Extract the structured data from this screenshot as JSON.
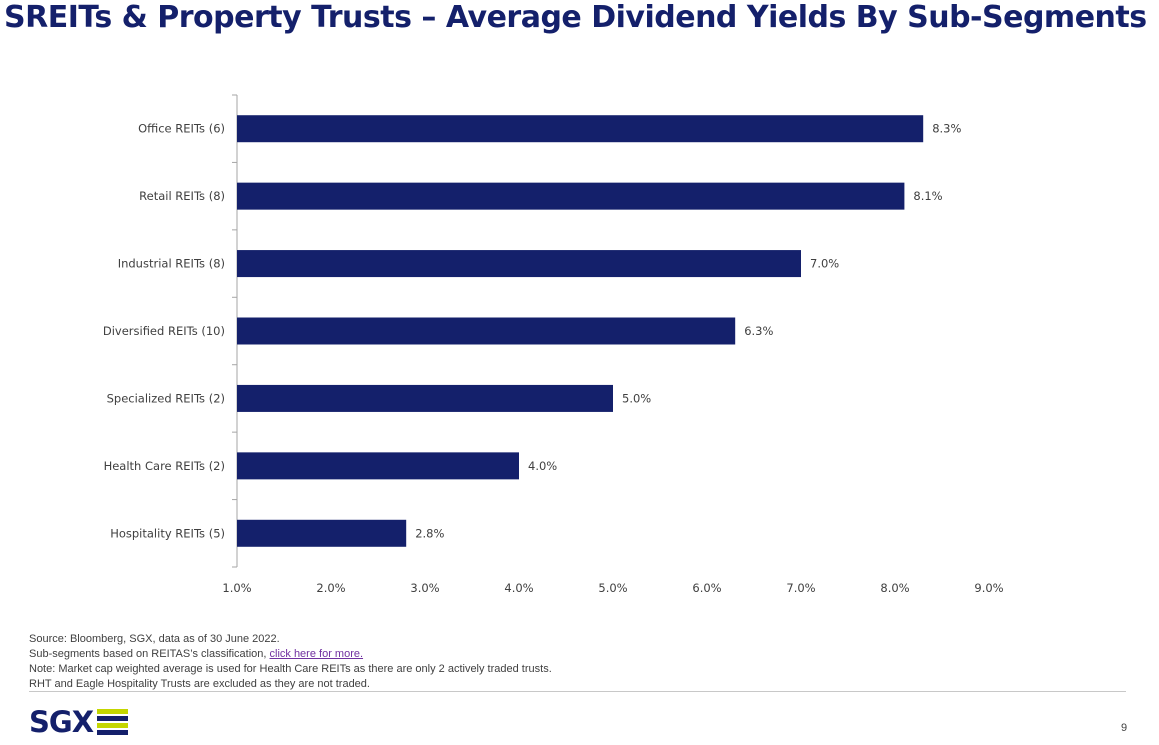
{
  "title": "SREITs & Property Trusts – Average Dividend Yields By Sub-Segments",
  "chart_data": {
    "type": "bar",
    "orientation": "horizontal",
    "categories": [
      "Office REITs (6)",
      "Retail REITs (8)",
      "Industrial REITs (8)",
      "Diversified REITs (10)",
      "Specialized REITs (2)",
      "Health Care REITs (2)",
      "Hospitality REITs (5)"
    ],
    "values": [
      8.3,
      8.1,
      7.0,
      6.3,
      5.0,
      4.0,
      2.8
    ],
    "value_labels": [
      "8.3%",
      "8.1%",
      "7.0%",
      "6.3%",
      "5.0%",
      "4.0%",
      "2.8%"
    ],
    "xlim": [
      1.0,
      9.0
    ],
    "x_ticks": [
      1.0,
      2.0,
      3.0,
      4.0,
      5.0,
      6.0,
      7.0,
      8.0,
      9.0
    ],
    "x_tick_labels": [
      "1.0%",
      "2.0%",
      "3.0%",
      "4.0%",
      "5.0%",
      "6.0%",
      "7.0%",
      "8.0%",
      "9.0%"
    ],
    "bar_color": "#14206b",
    "grid": false,
    "legend": "none"
  },
  "footnotes": {
    "source": "Source: Bloomberg, SGX, data as of 30 June 2022.",
    "subsegments_prefix": "Sub-segments based on REITAS’s classification, ",
    "link_text": "click here for more.",
    "note1": "Note: Market cap weighted average is used for Health Care REITs as there are only 2 actively traded trusts.",
    "note2": "RHT and Eagle Hospitality Trusts are excluded as they are not traded."
  },
  "logo": {
    "text": "SGX",
    "colors": [
      "#c4d600",
      "#14206b",
      "#c4d600",
      "#14206b"
    ]
  },
  "page_number": "9"
}
